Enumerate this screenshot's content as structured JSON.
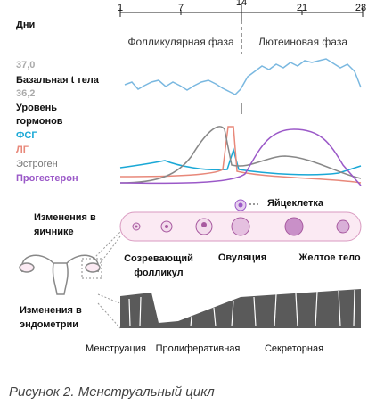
{
  "axis": {
    "label": "Дни",
    "ticks": [
      "1",
      "7",
      "14",
      "21",
      "28"
    ]
  },
  "phases": [
    "Фолликулярная фаза",
    "Лютеиновая фаза"
  ],
  "temperature": {
    "high": "37,0",
    "label": "Базальная t тела",
    "low": "36,2"
  },
  "hormones": {
    "label": "Уровень гормонов",
    "items": [
      "ФСГ",
      "ЛГ",
      "Эстроген",
      "Прогестерон"
    ]
  },
  "egg": "Яйцеклетка",
  "ovary": {
    "label": "Изменения в яичнике",
    "stages": [
      "Созревающий фолликул",
      "Овуляция",
      "Желтое тело"
    ]
  },
  "endometrium": {
    "label": "Изменения в эндометрии",
    "stages": [
      "Менструация",
      "Пролиферативная",
      "Секреторная"
    ]
  },
  "caption": "Рисунок 2. Менструальный цикл"
}
